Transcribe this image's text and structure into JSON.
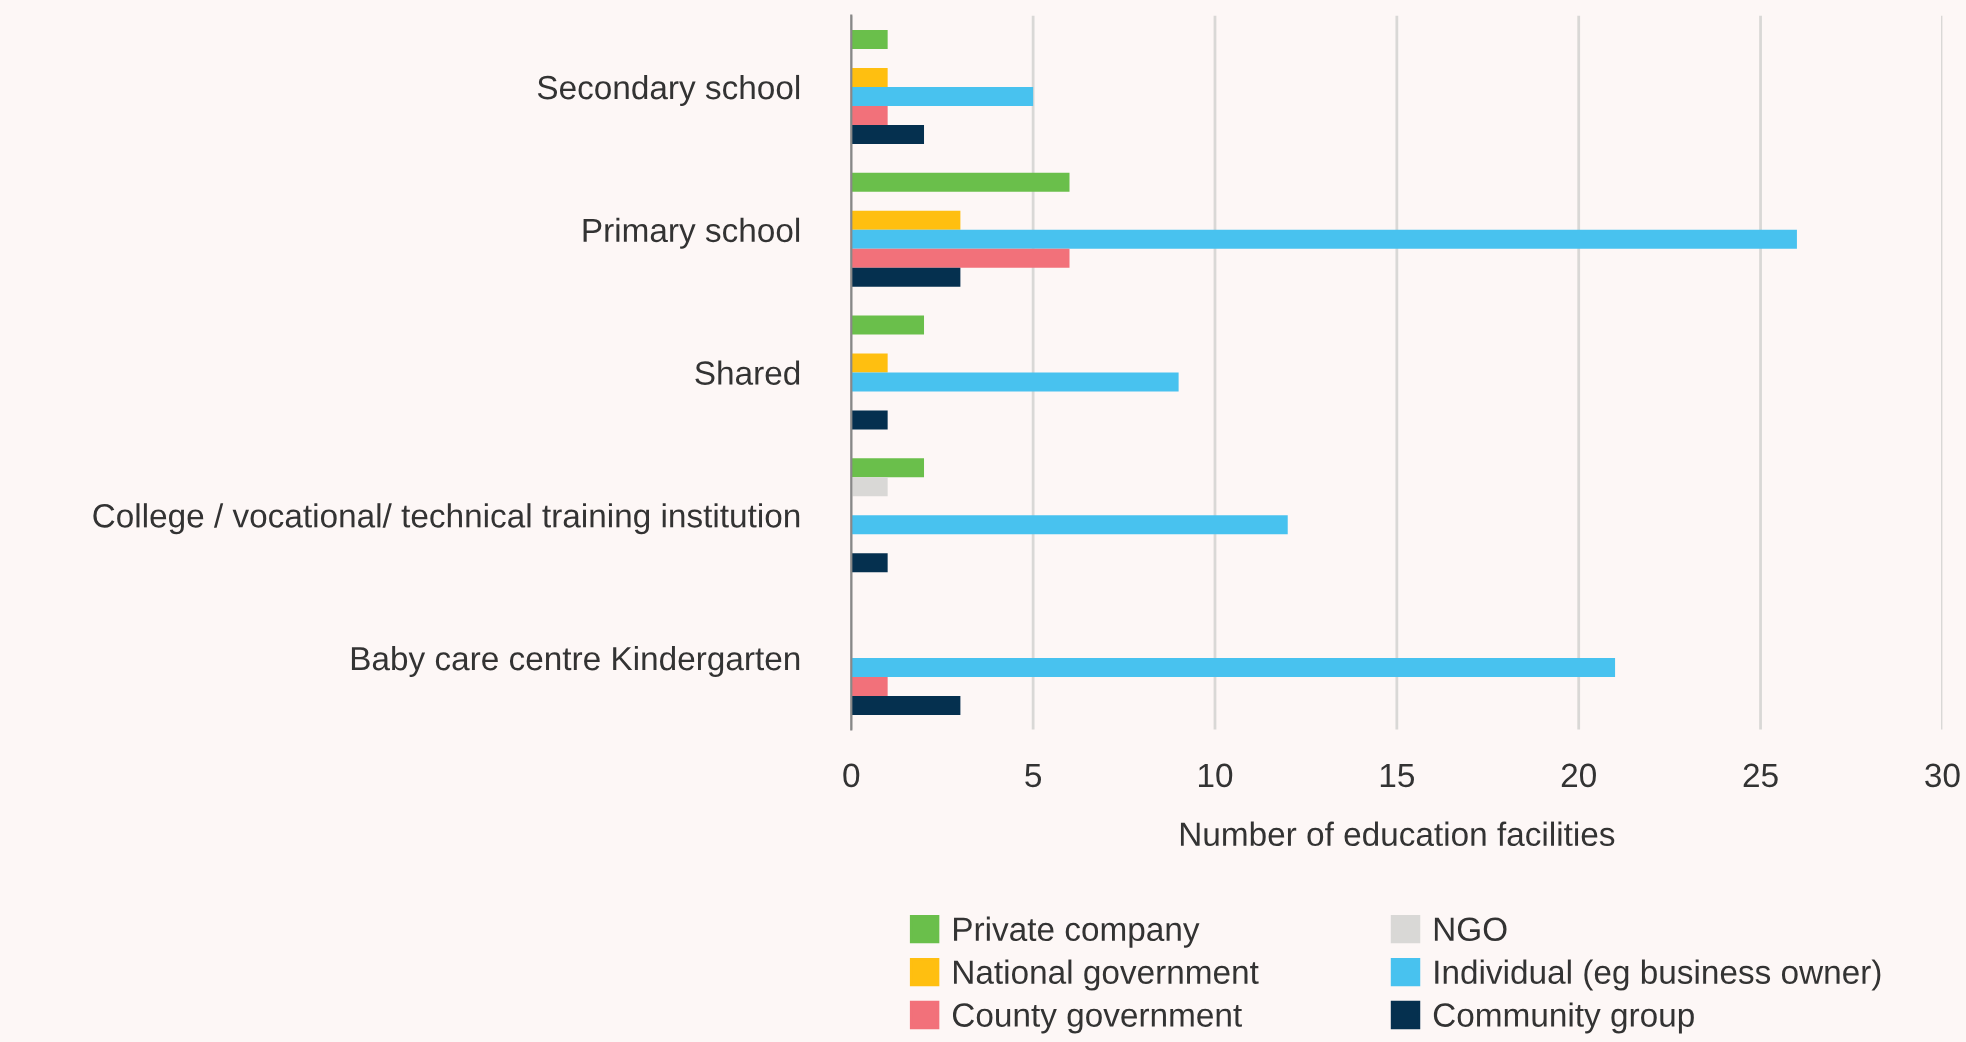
{
  "chart_data": {
    "type": "bar",
    "orientation": "horizontal",
    "xlabel": "Number of education facilities",
    "categories": [
      "Secondary school",
      "Primary school",
      "Shared",
      "College / vocational/ technical training institution",
      "Baby care centre Kindergarten"
    ],
    "series": [
      {
        "name": "Private company",
        "color": "#6abf4b",
        "values": [
          1,
          6,
          2,
          2,
          0
        ]
      },
      {
        "name": "NGO",
        "color": "#d9d8d6",
        "values": [
          0,
          0,
          0,
          1,
          0
        ]
      },
      {
        "name": "National government",
        "color": "#ffbf10",
        "values": [
          1,
          3,
          1,
          0,
          0
        ]
      },
      {
        "name": "Individual (eg business owner)",
        "color": "#48c2ef",
        "values": [
          5,
          26,
          9,
          12,
          21
        ]
      },
      {
        "name": "County government",
        "color": "#f2717a",
        "values": [
          1,
          6,
          0,
          0,
          1
        ]
      },
      {
        "name": "Community group",
        "color": "#05304f",
        "values": [
          2,
          3,
          1,
          1,
          3
        ]
      }
    ],
    "xlim": [
      0,
      30
    ],
    "xticks": [
      0,
      5,
      10,
      15,
      20,
      25,
      30
    ],
    "grid": "x",
    "legend": "bottom"
  }
}
